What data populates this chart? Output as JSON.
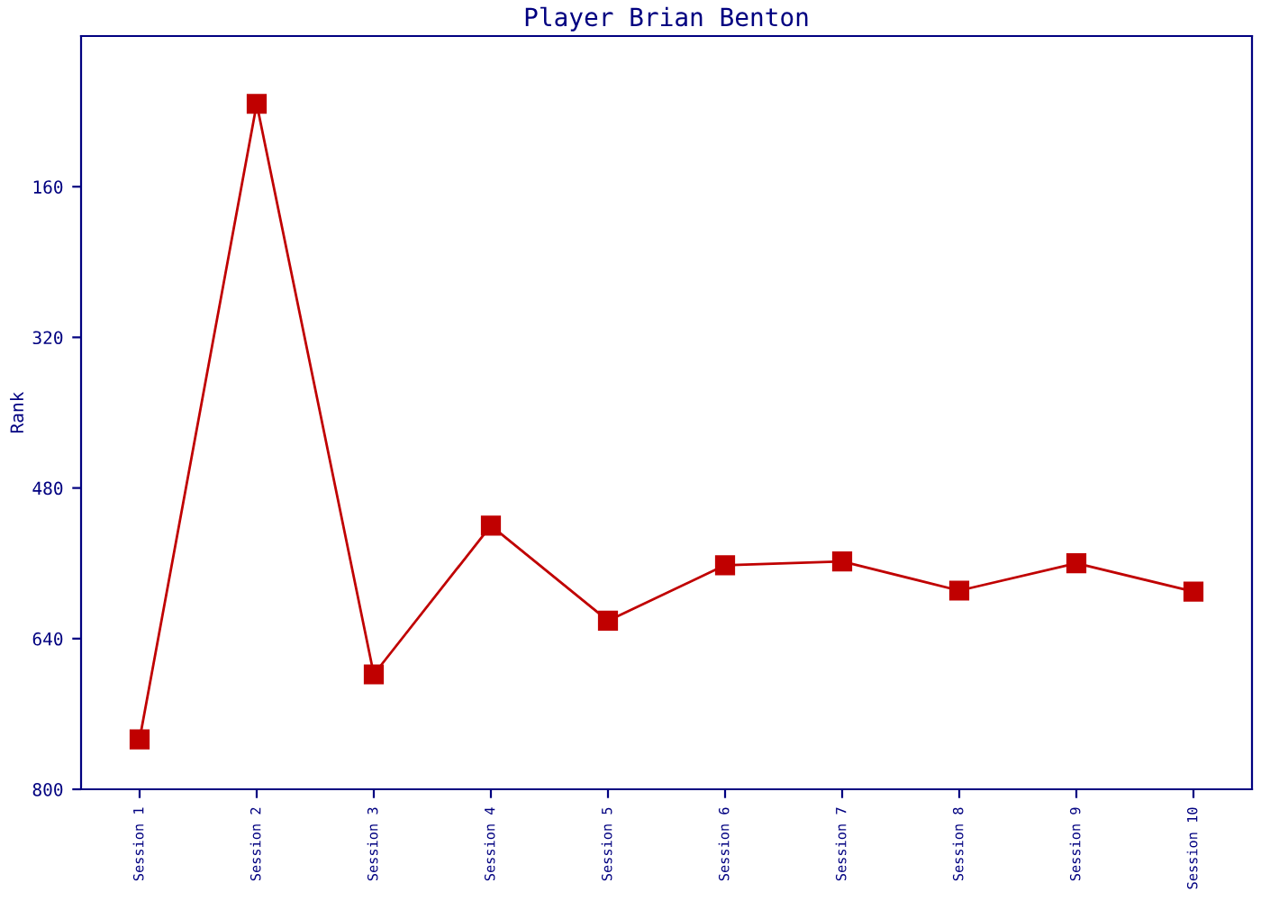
{
  "chart_data": {
    "type": "line",
    "title": "Player Brian Benton",
    "ylabel": "Rank",
    "categories": [
      "Session 1",
      "Session 2",
      "Session 3",
      "Session 4",
      "Session 5",
      "Session 6",
      "Session 7",
      "Session 8",
      "Session 9",
      "Session 10"
    ],
    "series": [
      {
        "color": "#c00000",
        "values": [
          747,
          72,
          678,
          520,
          621,
          562,
          558,
          589,
          560,
          590
        ]
      }
    ],
    "ylim": [
      800,
      0
    ],
    "yticks": [
      160,
      320,
      480,
      640,
      800
    ],
    "marker": "square",
    "line_style": "solid",
    "grid": false,
    "legend": false
  }
}
